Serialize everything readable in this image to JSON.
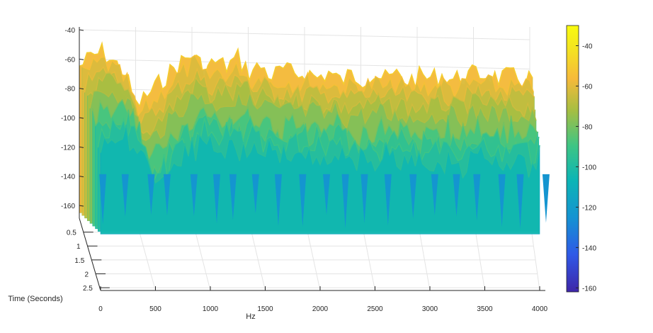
{
  "chart_data": {
    "type": "surface",
    "title": "",
    "xlabel": "Hz",
    "ylabel": "Time (Seconds)",
    "zlabel": "",
    "x_ticks": [
      0,
      500,
      1000,
      1500,
      2000,
      2500,
      3000,
      3500,
      4000
    ],
    "y_ticks": [
      0.5,
      1,
      1.5,
      2,
      2.5
    ],
    "z_ticks": [
      -40,
      -60,
      -80,
      -100,
      -120,
      -140,
      -160
    ],
    "xlim": [
      0,
      4000
    ],
    "ylim": [
      0,
      2.6
    ],
    "zlim": [
      -160,
      -40
    ],
    "colorbar": {
      "ticks": [
        -40,
        -60,
        -80,
        -100,
        -120,
        -140,
        -160
      ],
      "range": [
        -162,
        -30
      ],
      "colormap": "parula",
      "colors": [
        "#3e26a8",
        "#2f59e7",
        "#1493d2",
        "#0cb5b5",
        "#3fc584",
        "#a5be42",
        "#f6ba3a",
        "#f4e61f",
        "#f9fb0e"
      ]
    },
    "peak_profile": {
      "description_note": "",
      "x": [
        0,
        100,
        200,
        300,
        400,
        500,
        600,
        700,
        800,
        900,
        1000,
        1100,
        1200,
        1300,
        1400,
        1500,
        1600,
        1700,
        1800,
        1900,
        2000,
        2100,
        2200,
        2300,
        2400,
        2500,
        2600,
        2700,
        2800,
        2900,
        3000,
        3100,
        3200,
        3300,
        3400,
        3500,
        3600,
        3700,
        3800,
        3900,
        4000
      ],
      "z_near_front": [
        -58,
        -52,
        -48,
        -55,
        -62,
        -85,
        -78,
        -70,
        -62,
        -55,
        -50,
        -60,
        -55,
        -58,
        -52,
        -62,
        -58,
        -65,
        -60,
        -64,
        -62,
        -66,
        -62,
        -68,
        -64,
        -66,
        -63,
        -67,
        -64,
        -68,
        -65,
        -66,
        -64,
        -67,
        -65,
        -63,
        -64,
        -66,
        -65,
        -67,
        -66
      ]
    },
    "grid": true,
    "legend": "none"
  }
}
